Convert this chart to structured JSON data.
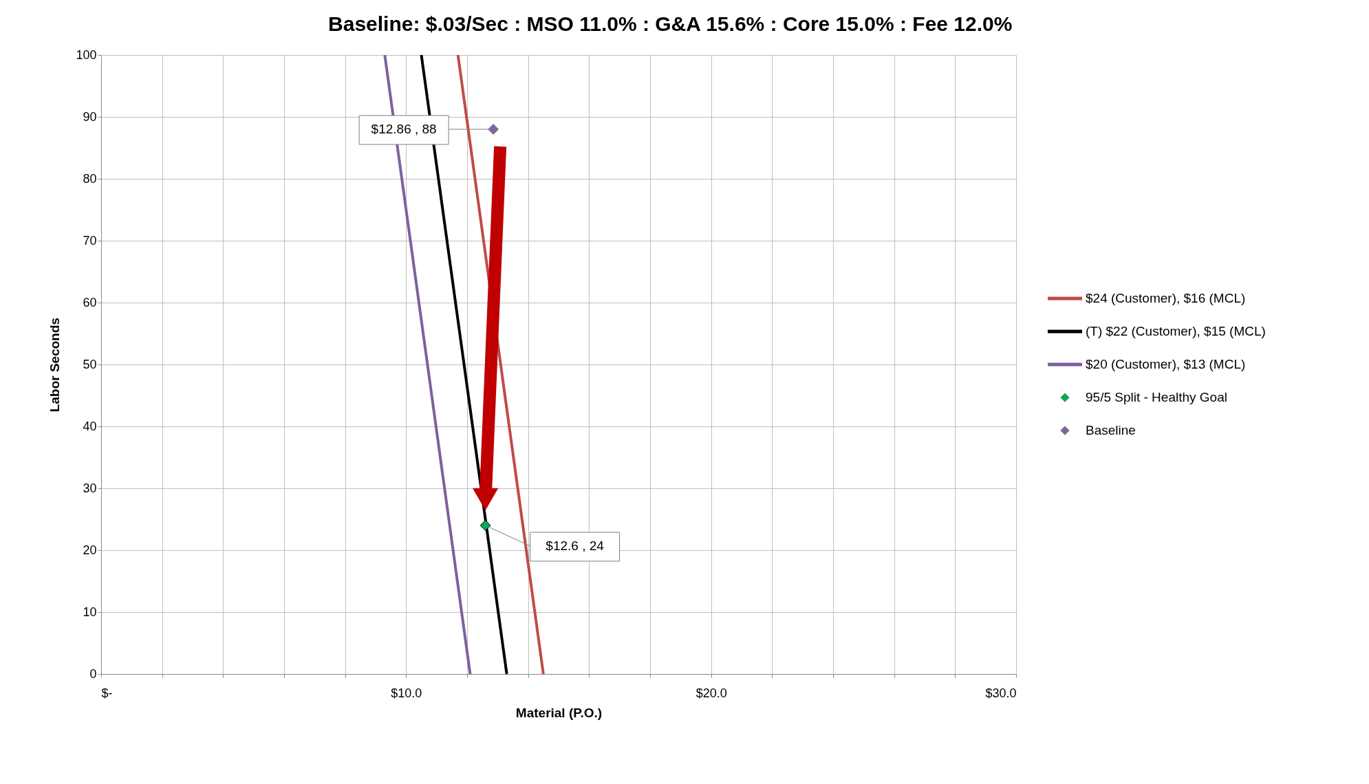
{
  "chart_data": {
    "type": "line",
    "title": "Baseline: $.03/Sec : MSO 11.0% : G&A 15.6% : Core 15.0% : Fee 12.0%",
    "xlabel": "Material (P.O.)",
    "ylabel": "Labor Seconds",
    "series": [
      {
        "name": "$24 (Customer), $16 (MCL)",
        "color": "#be4b48",
        "x": [
          14.5,
          11.7
        ],
        "values": [
          0,
          100
        ]
      },
      {
        "name": "(T) $22 (Customer), $15 (MCL)",
        "color": "#000000",
        "x": [
          13.3,
          10.5
        ],
        "values": [
          0,
          100
        ]
      },
      {
        "name": "$20 (Customer), $13 (MCL)",
        "color": "#7d60a0",
        "x": [
          12.1,
          9.3
        ],
        "values": [
          0,
          100
        ]
      },
      {
        "name": "95/5 Split - Healthy Goal",
        "type": "scatter",
        "marker": "diamond",
        "color": "#00b050",
        "x": [
          12.6
        ],
        "values": [
          24
        ]
      },
      {
        "name": "Baseline",
        "type": "scatter",
        "marker": "diamond",
        "color": "#8064a2",
        "x": [
          12.86
        ],
        "values": [
          88
        ]
      }
    ],
    "annotations": [
      {
        "text": "$12.86 , 88",
        "x": 12.86,
        "y": 88
      },
      {
        "text": "$12.6 , 24",
        "x": 12.6,
        "y": 24
      }
    ],
    "xlim": [
      0,
      30
    ],
    "ylim": [
      0,
      100
    ],
    "xticks": [
      {
        "value": 0,
        "label": "$-"
      },
      {
        "value": 2,
        "label": null
      },
      {
        "value": 4,
        "label": null
      },
      {
        "value": 6,
        "label": null
      },
      {
        "value": 8,
        "label": null
      },
      {
        "value": 10,
        "label": "$10.0"
      },
      {
        "value": 12,
        "label": null
      },
      {
        "value": 14,
        "label": null
      },
      {
        "value": 16,
        "label": null
      },
      {
        "value": 18,
        "label": null
      },
      {
        "value": 20,
        "label": "$20.0"
      },
      {
        "value": 22,
        "label": null
      },
      {
        "value": 24,
        "label": null
      },
      {
        "value": 26,
        "label": null
      },
      {
        "value": 28,
        "label": null
      },
      {
        "value": 30,
        "label": "$30.0"
      }
    ],
    "yticks": [
      0,
      10,
      20,
      30,
      40,
      50,
      60,
      70,
      80,
      90,
      100
    ],
    "grid": true,
    "legend": "right"
  }
}
